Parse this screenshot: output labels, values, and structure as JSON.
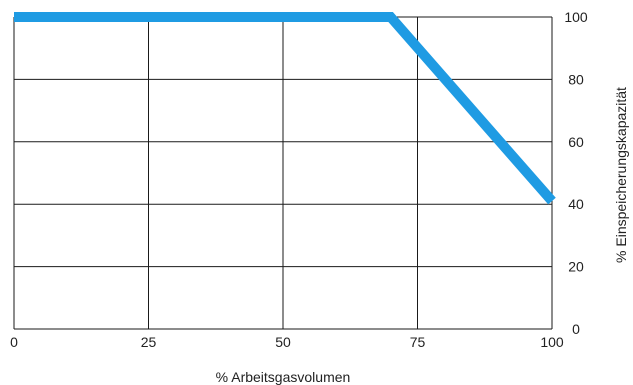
{
  "chart_data": {
    "type": "line",
    "title": "",
    "xlabel": "% Arbeitsgasvolumen",
    "ylabel": "% Einspeicherungskapazität",
    "x_ticks": [
      0,
      25,
      50,
      75,
      100
    ],
    "y_ticks": [
      0,
      20,
      40,
      60,
      80,
      100
    ],
    "xlim": [
      0,
      100
    ],
    "ylim": [
      0,
      100
    ],
    "y_axis_side": "right",
    "grid": true,
    "series": [
      {
        "x": [
          0,
          70,
          100
        ],
        "y": [
          100,
          100,
          41
        ]
      }
    ]
  },
  "colors": {
    "line": "#1f9be3",
    "grid": "#1a1a1a",
    "text": "#222222"
  }
}
